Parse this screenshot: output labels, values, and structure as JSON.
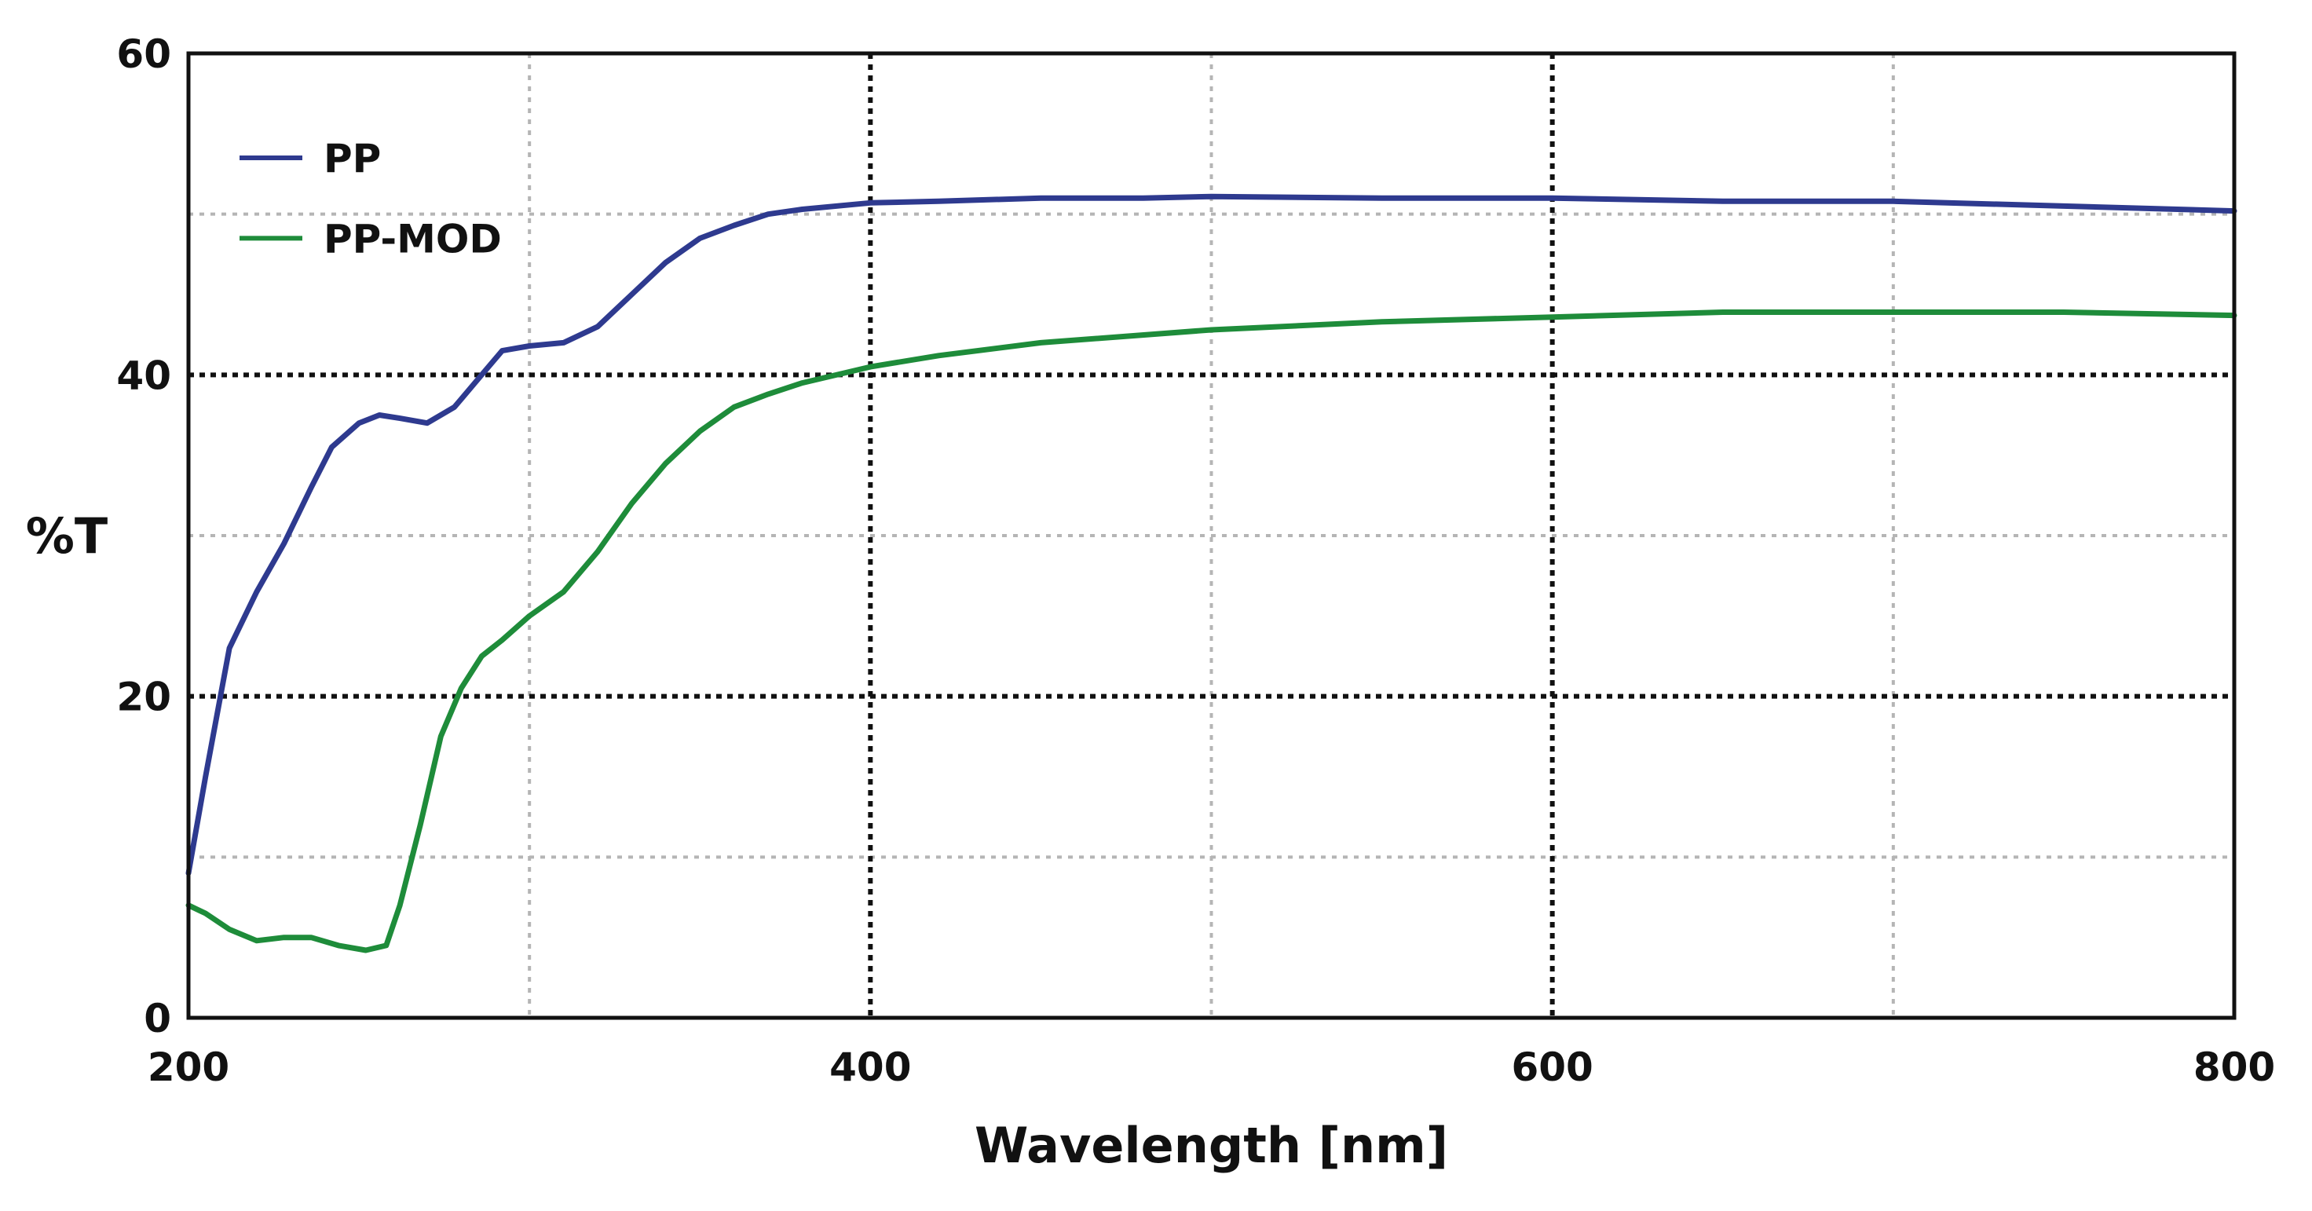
{
  "chart_data": {
    "type": "line",
    "title": "",
    "xlabel": "Wavelength [nm]",
    "ylabel": "%T",
    "xlim": [
      200,
      800
    ],
    "ylim": [
      0,
      60
    ],
    "x_ticks": [
      200,
      400,
      600,
      800
    ],
    "y_ticks": [
      0,
      20,
      40,
      60
    ],
    "x_tick_labels": [
      "200",
      "400",
      "600",
      "800"
    ],
    "y_tick_labels": [
      "0",
      "20",
      "40",
      "60"
    ],
    "grid": true,
    "legend_position": "top-left",
    "series": [
      {
        "name": "PP",
        "color": "#2e3a8f",
        "x": [
          200,
          205,
          212,
          220,
          228,
          236,
          242,
          250,
          256,
          262,
          270,
          278,
          286,
          292,
          300,
          310,
          320,
          330,
          340,
          350,
          360,
          370,
          380,
          400,
          420,
          450,
          480,
          500,
          550,
          600,
          650,
          700,
          750,
          800
        ],
        "y": [
          9,
          15,
          23,
          26.5,
          29.5,
          33,
          35.5,
          37,
          37.5,
          37.3,
          37,
          38,
          40,
          41.5,
          41.8,
          42,
          43,
          45,
          47,
          48.5,
          49.3,
          50,
          50.3,
          50.7,
          50.8,
          51,
          51,
          51.1,
          51,
          51,
          50.8,
          50.8,
          50.5,
          50.2
        ]
      },
      {
        "name": "PP-MOD",
        "color": "#1e8c3a",
        "x": [
          200,
          205,
          212,
          220,
          228,
          236,
          244,
          252,
          258,
          262,
          268,
          274,
          280,
          286,
          292,
          300,
          310,
          320,
          330,
          340,
          350,
          360,
          370,
          380,
          400,
          420,
          450,
          500,
          550,
          600,
          650,
          700,
          750,
          800
        ],
        "y": [
          7,
          6.5,
          5.5,
          4.8,
          5,
          5,
          4.5,
          4.2,
          4.5,
          7,
          12,
          17.5,
          20.5,
          22.5,
          23.5,
          25,
          26.5,
          29,
          32,
          34.5,
          36.5,
          38,
          38.8,
          39.5,
          40.5,
          41.2,
          42,
          42.8,
          43.3,
          43.6,
          43.9,
          43.9,
          43.9,
          43.7
        ]
      }
    ]
  }
}
